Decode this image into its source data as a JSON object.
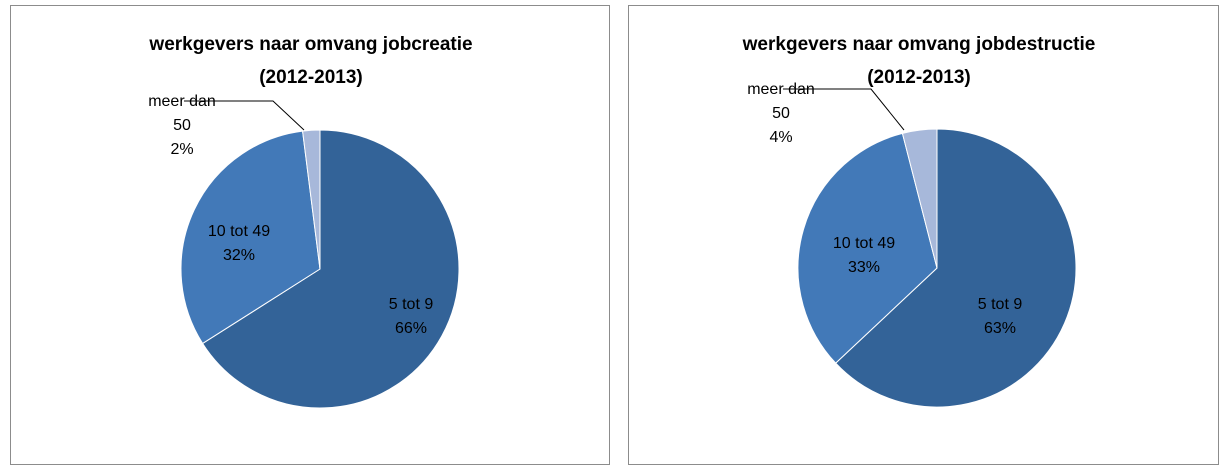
{
  "chart_data": [
    {
      "type": "pie",
      "title_lines": [
        "werkgevers naar omvang jobcreatie",
        "(2012-2013)"
      ],
      "slices": [
        {
          "label_lines": [
            "5 tot 9"
          ],
          "percent_label": "66%",
          "value": 66,
          "color": "#336398"
        },
        {
          "label_lines": [
            "10 tot 49"
          ],
          "percent_label": "32%",
          "value": 32,
          "color": "#4279b8"
        },
        {
          "label_lines": [
            "meer dan",
            "50"
          ],
          "percent_label": "2%",
          "value": 2,
          "color": "#a7b8da"
        }
      ]
    },
    {
      "type": "pie",
      "title_lines": [
        "werkgevers  naar omvang jobdestructie",
        "(2012-2013)"
      ],
      "slices": [
        {
          "label_lines": [
            "5 tot 9"
          ],
          "percent_label": "63%",
          "value": 63,
          "color": "#336398"
        },
        {
          "label_lines": [
            "10 tot 49"
          ],
          "percent_label": "33%",
          "value": 33,
          "color": "#4279b8"
        },
        {
          "label_lines": [
            "meer dan",
            "50"
          ],
          "percent_label": "4%",
          "value": 4,
          "color": "#a7b8da"
        }
      ]
    }
  ]
}
